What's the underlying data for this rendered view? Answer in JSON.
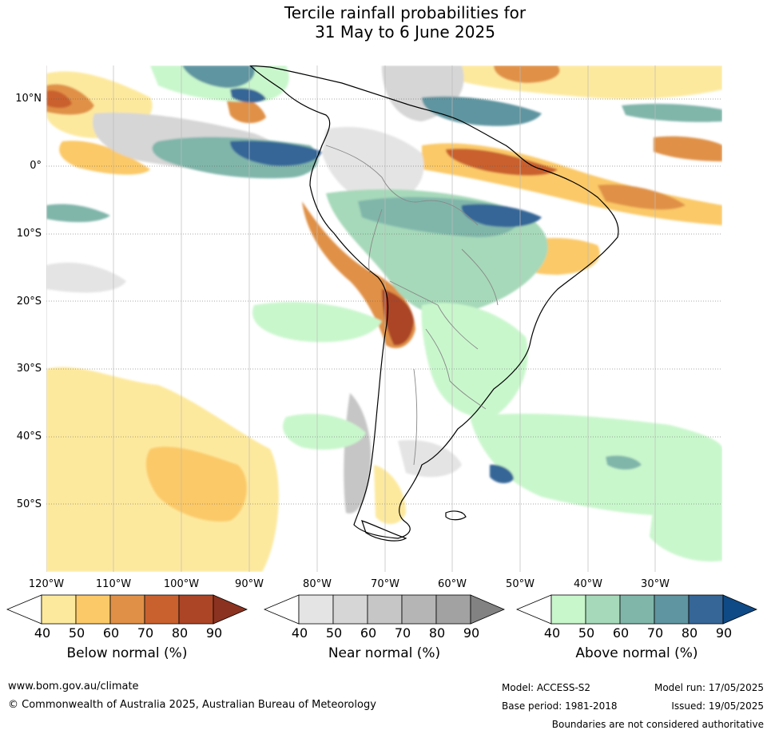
{
  "title": {
    "line1": "Tercile rainfall probabilities for",
    "line2": "31 May to 6 June 2025"
  },
  "latitude_labels": [
    "10°N",
    "0°",
    "10°S",
    "20°S",
    "30°S",
    "40°S",
    "50°S"
  ],
  "longitude_labels": [
    "120°W",
    "110°W",
    "100°W",
    "90°W",
    "80°W",
    "70°W",
    "60°W",
    "50°W",
    "40°W",
    "30°W"
  ],
  "colorbars": [
    {
      "title": "Below normal (%)",
      "ticks": [
        "40",
        "50",
        "60",
        "70",
        "80",
        "90"
      ],
      "colors": [
        "#ffffff",
        "#fde99d",
        "#fbc967",
        "#e09147",
        "#c9612f",
        "#ab4526",
        "#8c3220"
      ]
    },
    {
      "title": "Near normal (%)",
      "ticks": [
        "40",
        "50",
        "60",
        "70",
        "80",
        "90"
      ],
      "colors": [
        "#ffffff",
        "#e4e4e4",
        "#d6d6d6",
        "#c6c6c6",
        "#b5b5b5",
        "#a2a2a2",
        "#828282"
      ]
    },
    {
      "title": "Above normal (%)",
      "ticks": [
        "40",
        "50",
        "60",
        "70",
        "80",
        "90"
      ],
      "colors": [
        "#ffffff",
        "#c9f7cc",
        "#a6d9b9",
        "#80b6aa",
        "#5e95a0",
        "#356697",
        "#0f4a86"
      ]
    }
  ],
  "footer": {
    "website": "www.bom.gov.au/climate",
    "copyright": "© Commonwealth of Australia 2025, Australian Bureau of Meteorology",
    "model": "Model: ACCESS-S2",
    "base_period": "Base period: 1981-2018",
    "model_run": "Model run: 17/05/2025",
    "issued": "Issued: 19/05/2025",
    "disclaimer": "Boundaries are not considered authoritative"
  }
}
